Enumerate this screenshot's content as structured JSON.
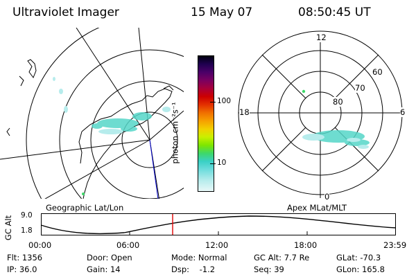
{
  "header": {
    "instrument": "Ultraviolet Imager",
    "date": "15 May 07",
    "time": "08:50:45 UT"
  },
  "colorbar": {
    "unit_label": "photon cm⁻²s⁻¹",
    "ticks": [
      "100",
      "10"
    ],
    "colors": [
      "#000010",
      "#200050",
      "#4b0068",
      "#7a0060",
      "#a8003a",
      "#cc0000",
      "#e33000",
      "#f07000",
      "#f6a000",
      "#f2d000",
      "#c8f000",
      "#7ee600",
      "#3ed86a",
      "#3ad0c6",
      "#6ddcdc",
      "#b6ecec",
      "#e8f8f8"
    ]
  },
  "left_map": {
    "label": "Geographic Lat/Lon"
  },
  "right_map": {
    "label": "Apex MLat/MLT",
    "mlt_labels": [
      "12",
      "18",
      "6",
      "0"
    ],
    "lat_labels": [
      "60",
      "70",
      "80"
    ]
  },
  "altitude_plot": {
    "ylabel": "GC Alt",
    "y_ticks": [
      "9.0",
      "1.8"
    ],
    "x_ticks": [
      "00:00",
      "06:00",
      "12:00",
      "18:00",
      "23:59"
    ],
    "marker_color": "#e00000"
  },
  "status": {
    "flt": "Flt: 1356",
    "ip": "IP: 36.0",
    "door": "Door: Open",
    "gain": "Gain: 14",
    "mode": "Mode: Normal",
    "dsp": "Dsp:    -1.2",
    "gc_alt": "GC Alt: 7.7 Re",
    "seq": "Seq: 39",
    "glat": "GLat: -70.3",
    "glon": "GLon: 165.8"
  }
}
